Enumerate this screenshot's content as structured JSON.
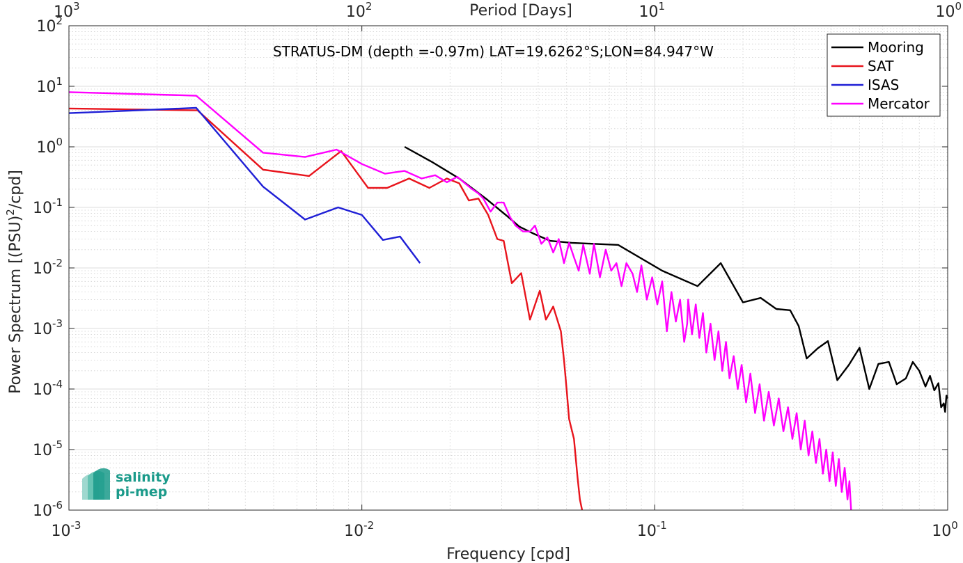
{
  "chart_data": {
    "type": "line",
    "title": "STRATUS-DM (depth =-0.97m) LAT=19.6262°S;LON=84.947°W",
    "xlabel": "Frequency [cpd]",
    "ylabel_base": "Power Spectrum [(PSU)",
    "ylabel_sup": "2",
    "ylabel_tail": "/cpd]",
    "top_xlabel": "Period [Days]",
    "x_scale": "log",
    "y_scale": "log",
    "xlim": [
      0.001,
      1
    ],
    "ylim": [
      1e-06,
      100
    ],
    "grid": true,
    "minor_grid": true,
    "legend_position": "top-right",
    "x_ticks": [
      {
        "value": 0.001,
        "base": "10",
        "exp": "-3"
      },
      {
        "value": 0.01,
        "base": "10",
        "exp": "-2"
      },
      {
        "value": 0.1,
        "base": "10",
        "exp": "-1"
      },
      {
        "value": 1,
        "base": "10",
        "exp": "0"
      }
    ],
    "top_ticks": [
      {
        "value": 0.001,
        "base": "10",
        "exp": "3"
      },
      {
        "value": 0.01,
        "base": "10",
        "exp": "2"
      },
      {
        "value": 0.1,
        "base": "10",
        "exp": "1"
      },
      {
        "value": 1,
        "base": "10",
        "exp": "0"
      }
    ],
    "y_ticks": [
      {
        "value": 100,
        "base": "10",
        "exp": "2"
      },
      {
        "value": 10,
        "base": "10",
        "exp": "1"
      },
      {
        "value": 1,
        "base": "10",
        "exp": "0"
      },
      {
        "value": 0.1,
        "base": "10",
        "exp": "-1"
      },
      {
        "value": 0.01,
        "base": "10",
        "exp": "-2"
      },
      {
        "value": 0.001,
        "base": "10",
        "exp": "-3"
      },
      {
        "value": 0.0001,
        "base": "10",
        "exp": "-4"
      },
      {
        "value": 1e-05,
        "base": "10",
        "exp": "-5"
      },
      {
        "value": 1e-06,
        "base": "10",
        "exp": "-6"
      }
    ],
    "series": [
      {
        "name": "Mooring",
        "color": "#000000",
        "points": [
          [
            0.014,
            1.0
          ],
          [
            0.0175,
            0.55
          ],
          [
            0.0215,
            0.3
          ],
          [
            0.0265,
            0.14
          ],
          [
            0.031,
            0.075
          ],
          [
            0.0345,
            0.048
          ],
          [
            0.0385,
            0.037
          ],
          [
            0.044,
            0.028
          ],
          [
            0.052,
            0.026
          ],
          [
            0.075,
            0.024
          ],
          [
            0.106,
            0.009
          ],
          [
            0.14,
            0.005
          ],
          [
            0.168,
            0.012
          ],
          [
            0.2,
            0.0027
          ],
          [
            0.23,
            0.0032
          ],
          [
            0.26,
            0.0021
          ],
          [
            0.29,
            0.002
          ],
          [
            0.31,
            0.0011
          ],
          [
            0.33,
            0.00032
          ],
          [
            0.36,
            0.00047
          ],
          [
            0.39,
            0.00062
          ],
          [
            0.42,
            0.00014
          ],
          [
            0.46,
            0.00025
          ],
          [
            0.5,
            0.00048
          ],
          [
            0.54,
            0.0001
          ],
          [
            0.58,
            0.00026
          ],
          [
            0.63,
            0.00028
          ],
          [
            0.67,
            0.00012
          ],
          [
            0.72,
            0.00015
          ],
          [
            0.76,
            0.00028
          ],
          [
            0.8,
            0.0002
          ],
          [
            0.84,
            0.00011
          ],
          [
            0.87,
            0.000165
          ],
          [
            0.9,
            9.5e-05
          ],
          [
            0.93,
            0.000125
          ],
          [
            0.95,
            5e-05
          ],
          [
            0.97,
            5.8e-05
          ],
          [
            0.98,
            4.2e-05
          ],
          [
            0.99,
            7.8e-05
          ],
          [
            1.0,
            7e-05
          ]
        ]
      },
      {
        "name": "SAT",
        "color": "#e8141c",
        "points": [
          [
            0.001,
            4.3
          ],
          [
            0.00275,
            4.0
          ],
          [
            0.0046,
            0.42
          ],
          [
            0.0066,
            0.33
          ],
          [
            0.0085,
            0.85
          ],
          [
            0.0105,
            0.21
          ],
          [
            0.0122,
            0.21
          ],
          [
            0.0145,
            0.3
          ],
          [
            0.017,
            0.21
          ],
          [
            0.0195,
            0.3
          ],
          [
            0.0215,
            0.25
          ],
          [
            0.0232,
            0.13
          ],
          [
            0.025,
            0.14
          ],
          [
            0.027,
            0.075
          ],
          [
            0.029,
            0.03
          ],
          [
            0.0305,
            0.028
          ],
          [
            0.0325,
            0.0056
          ],
          [
            0.035,
            0.0082
          ],
          [
            0.0375,
            0.0014
          ],
          [
            0.0405,
            0.0042
          ],
          [
            0.0425,
            0.0014
          ],
          [
            0.045,
            0.0023
          ],
          [
            0.0478,
            0.0009
          ],
          [
            0.049,
            0.0003
          ],
          [
            0.05,
            0.0001
          ],
          [
            0.051,
            3.2e-05
          ],
          [
            0.053,
            1.5e-05
          ],
          [
            0.0545,
            3.5e-06
          ],
          [
            0.0555,
            1.5e-06
          ],
          [
            0.0565,
            1e-06
          ]
        ]
      },
      {
        "name": "ISAS",
        "color": "#1f1fd6",
        "points": [
          [
            0.001,
            3.6
          ],
          [
            0.00272,
            4.4
          ],
          [
            0.0046,
            0.22
          ],
          [
            0.0064,
            0.063
          ],
          [
            0.0083,
            0.1
          ],
          [
            0.01,
            0.075
          ],
          [
            0.0118,
            0.029
          ],
          [
            0.0135,
            0.033
          ],
          [
            0.0158,
            0.012
          ]
        ]
      },
      {
        "name": "Mercator",
        "color": "#ff00ff",
        "points": [
          [
            0.001,
            8.0
          ],
          [
            0.00272,
            7.0
          ],
          [
            0.0046,
            0.8
          ],
          [
            0.0064,
            0.68
          ],
          [
            0.0082,
            0.9
          ],
          [
            0.01,
            0.52
          ],
          [
            0.012,
            0.36
          ],
          [
            0.014,
            0.4
          ],
          [
            0.016,
            0.3
          ],
          [
            0.0178,
            0.34
          ],
          [
            0.0195,
            0.26
          ],
          [
            0.0212,
            0.32
          ],
          [
            0.0225,
            0.25
          ],
          [
            0.0238,
            0.2
          ],
          [
            0.025,
            0.17
          ],
          [
            0.026,
            0.14
          ],
          [
            0.0275,
            0.085
          ],
          [
            0.029,
            0.12
          ],
          [
            0.0305,
            0.12
          ],
          [
            0.032,
            0.07
          ],
          [
            0.0335,
            0.05
          ],
          [
            0.0355,
            0.04
          ],
          [
            0.0375,
            0.04
          ],
          [
            0.039,
            0.05
          ],
          [
            0.041,
            0.025
          ],
          [
            0.043,
            0.032
          ],
          [
            0.045,
            0.018
          ],
          [
            0.047,
            0.03
          ],
          [
            0.049,
            0.012
          ],
          [
            0.051,
            0.026
          ],
          [
            0.053,
            0.015
          ],
          [
            0.055,
            0.009
          ],
          [
            0.057,
            0.024
          ],
          [
            0.06,
            0.008
          ],
          [
            0.062,
            0.025
          ],
          [
            0.065,
            0.007
          ],
          [
            0.068,
            0.02
          ],
          [
            0.071,
            0.009
          ],
          [
            0.074,
            0.012
          ],
          [
            0.077,
            0.005
          ],
          [
            0.08,
            0.012
          ],
          [
            0.084,
            0.008
          ],
          [
            0.087,
            0.004
          ],
          [
            0.09,
            0.011
          ],
          [
            0.094,
            0.003
          ],
          [
            0.098,
            0.007
          ],
          [
            0.102,
            0.0025
          ],
          [
            0.106,
            0.006
          ],
          [
            0.11,
            0.0009
          ],
          [
            0.114,
            0.004
          ],
          [
            0.118,
            0.0013
          ],
          [
            0.122,
            0.003
          ],
          [
            0.126,
            0.0006
          ],
          [
            0.129,
            0.0012
          ],
          [
            0.13,
            0.003
          ],
          [
            0.134,
            0.0008
          ],
          [
            0.138,
            0.0025
          ],
          [
            0.142,
            0.0007
          ],
          [
            0.146,
            0.0018
          ],
          [
            0.15,
            0.0004
          ],
          [
            0.155,
            0.0012
          ],
          [
            0.16,
            0.0003
          ],
          [
            0.165,
            0.0009
          ],
          [
            0.17,
            0.0002
          ],
          [
            0.175,
            0.0006
          ],
          [
            0.18,
            0.00015
          ],
          [
            0.186,
            0.00035
          ],
          [
            0.192,
            0.0001
          ],
          [
            0.198,
            0.00025
          ],
          [
            0.205,
            6e-05
          ],
          [
            0.212,
            0.00018
          ],
          [
            0.22,
            4e-05
          ],
          [
            0.228,
            0.00012
          ],
          [
            0.236,
            3e-05
          ],
          [
            0.245,
            9e-05
          ],
          [
            0.255,
            2.5e-05
          ],
          [
            0.265,
            7e-05
          ],
          [
            0.275,
            2e-05
          ],
          [
            0.285,
            5e-05
          ],
          [
            0.295,
            1.5e-05
          ],
          [
            0.305,
            4e-05
          ],
          [
            0.315,
            1e-05
          ],
          [
            0.325,
            3e-05
          ],
          [
            0.335,
            8e-06
          ],
          [
            0.345,
            2e-05
          ],
          [
            0.355,
            6e-06
          ],
          [
            0.365,
            1.5e-05
          ],
          [
            0.375,
            4e-06
          ],
          [
            0.385,
            1e-05
          ],
          [
            0.395,
            3e-06
          ],
          [
            0.405,
            9e-06
          ],
          [
            0.415,
            2.5e-06
          ],
          [
            0.425,
            7e-06
          ],
          [
            0.435,
            2e-06
          ],
          [
            0.445,
            5e-06
          ],
          [
            0.455,
            1.5e-06
          ],
          [
            0.462,
            3e-06
          ],
          [
            0.468,
            1e-06
          ]
        ]
      }
    ]
  },
  "logo": {
    "line1": "salinity",
    "line2": "pi-mep",
    "color": "#1a9a8a"
  }
}
